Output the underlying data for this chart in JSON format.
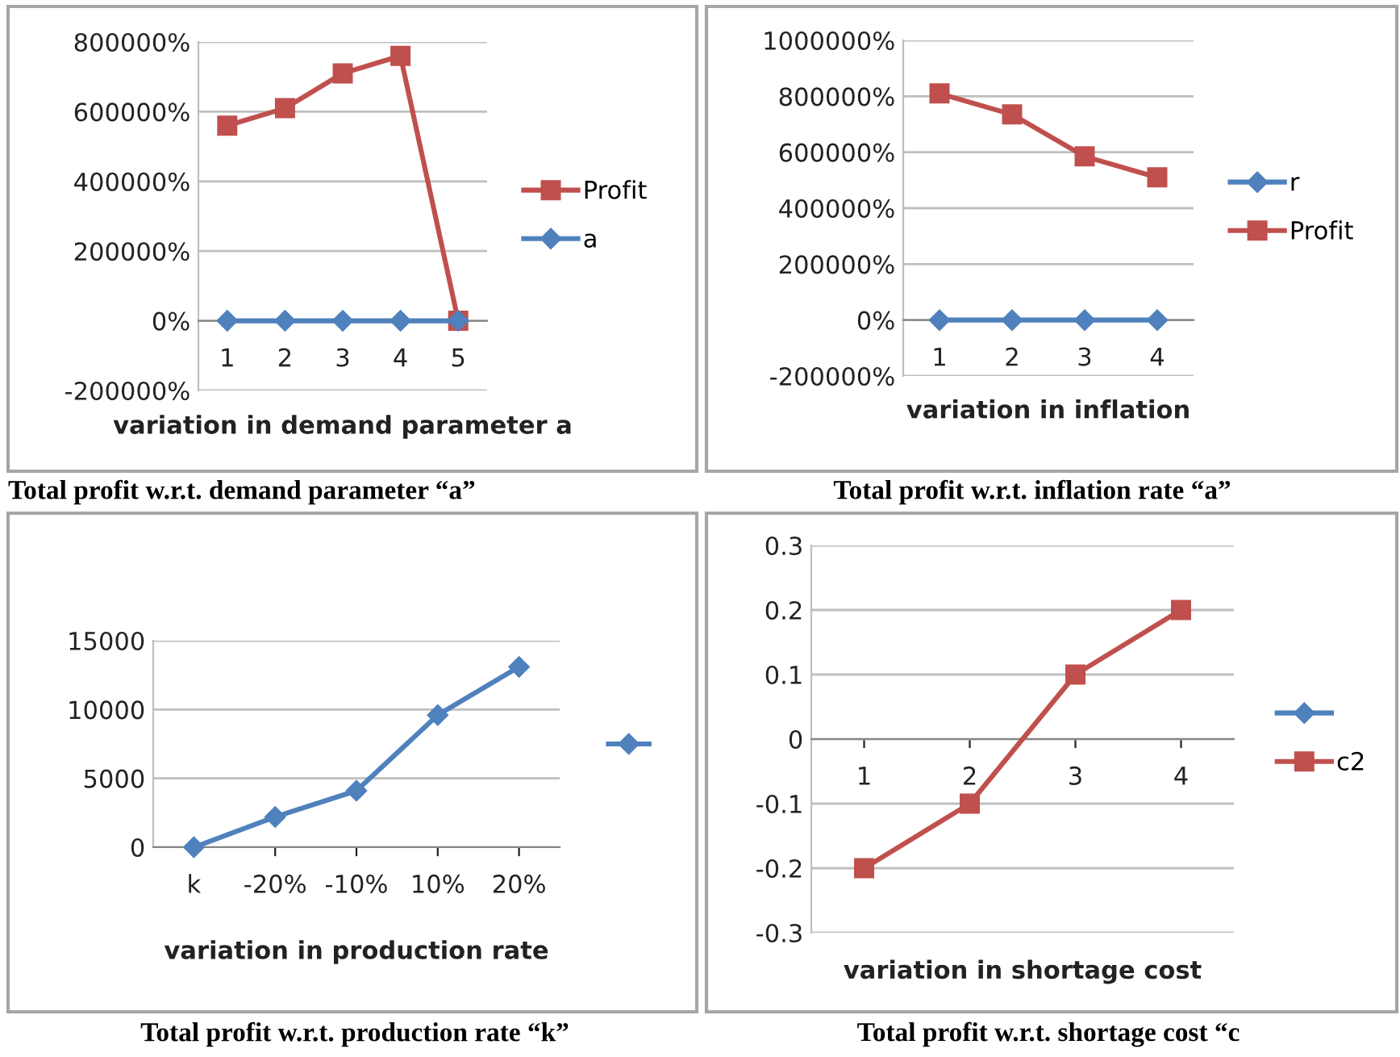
{
  "chart_data": [
    {
      "type": "line",
      "title": "Total profit w.r.t. demand parameter “a”",
      "xlabel": "variation in demand parameter a",
      "categories": [
        "1",
        "2",
        "3",
        "4",
        "5"
      ],
      "series": [
        {
          "name": "Profit",
          "color": "#c0504d",
          "marker": "square",
          "values": [
            560000,
            610000,
            710000,
            760000,
            0
          ]
        },
        {
          "name": "a",
          "color": "#4f81bd",
          "marker": "diamond",
          "values": [
            0,
            0,
            0,
            0,
            0
          ]
        }
      ],
      "ylim": [
        -200000,
        800000
      ],
      "yticks": [
        {
          "value": -200000,
          "label": "-200000%"
        },
        {
          "value": 0,
          "label": "0%"
        },
        {
          "value": 200000,
          "label": "200000%"
        },
        {
          "value": 400000,
          "label": "400000%"
        },
        {
          "value": 600000,
          "label": "600000%"
        },
        {
          "value": 800000,
          "label": "800000%"
        }
      ],
      "grid": "y",
      "legend": "right"
    },
    {
      "type": "line",
      "title": "Total profit w.r.t. inflation rate “a”",
      "xlabel": "variation in inflation",
      "categories": [
        "1",
        "2",
        "3",
        "4"
      ],
      "series": [
        {
          "name": "r",
          "color": "#4f81bd",
          "marker": "diamond",
          "values": [
            0,
            0,
            0,
            0
          ]
        },
        {
          "name": "Profit",
          "color": "#c0504d",
          "marker": "square",
          "values": [
            810000,
            735000,
            585000,
            510000
          ]
        }
      ],
      "ylim": [
        -200000,
        1000000
      ],
      "yticks": [
        {
          "value": -200000,
          "label": "-200000%"
        },
        {
          "value": 0,
          "label": "0%"
        },
        {
          "value": 200000,
          "label": "200000%"
        },
        {
          "value": 400000,
          "label": "400000%"
        },
        {
          "value": 600000,
          "label": "600000%"
        },
        {
          "value": 800000,
          "label": "800000%"
        },
        {
          "value": 1000000,
          "label": "1000000%"
        }
      ],
      "grid": "y",
      "legend": "right"
    },
    {
      "type": "line",
      "title": "Total profit w.r.t. production rate “k”",
      "xlabel": "variation in production rate",
      "categories": [
        "k",
        "-20%",
        "-10%",
        "10%",
        "20%"
      ],
      "series": [
        {
          "color": "#4f81bd",
          "marker": "diamond",
          "values": [
            0,
            2200,
            4100,
            9600,
            13100
          ]
        }
      ],
      "ylim": [
        0,
        15000
      ],
      "yticks": [
        0,
        5000,
        10000,
        15000
      ],
      "grid": "y"
    },
    {
      "type": "line",
      "title": "Total profit w.r.t. shortage cost “c",
      "xlabel": "variation in shortage cost",
      "categories": [
        "1",
        "2",
        "3",
        "4"
      ],
      "series": [
        {
          "color": "#4f81bd",
          "marker": "diamond",
          "values": [
            null,
            null,
            null,
            null
          ]
        },
        {
          "name": "c2",
          "color": "#c0504d",
          "marker": "square",
          "values": [
            -0.2,
            -0.1,
            0.1,
            0.2
          ]
        }
      ],
      "ylim": [
        -0.3,
        0.3
      ],
      "yticks": [
        -0.3,
        -0.2,
        -0.1,
        0,
        0.1,
        0.2,
        0.3
      ],
      "grid": "y",
      "legend": "right"
    }
  ]
}
